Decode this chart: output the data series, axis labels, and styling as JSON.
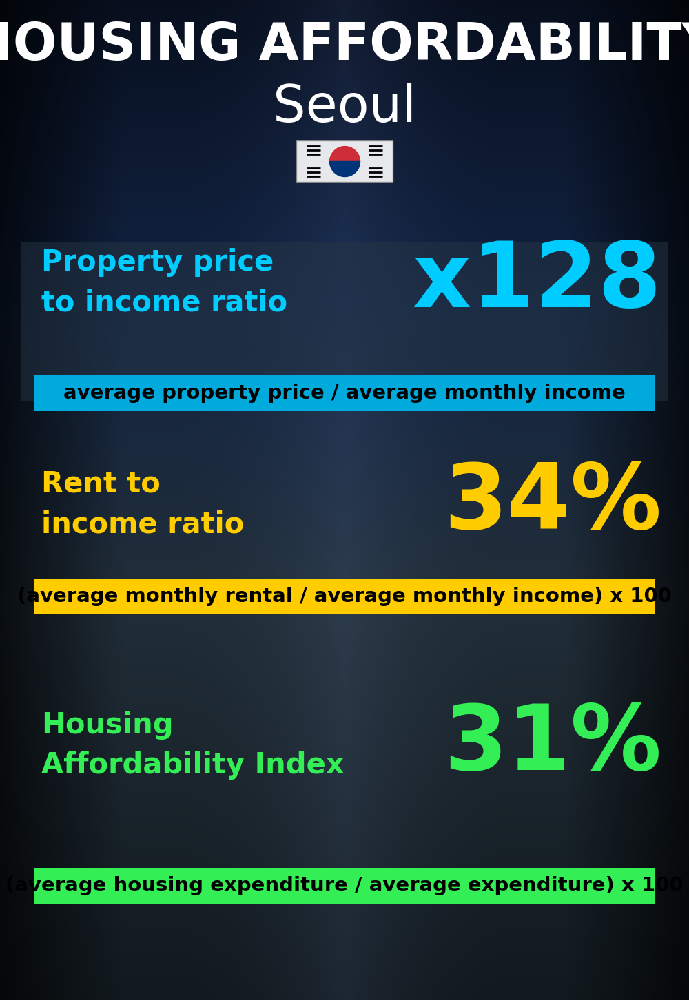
{
  "title_line1": "HOUSING AFFORDABILITY",
  "title_line2": "Seoul",
  "bg_color": "#08121e",
  "section1_label": "Property price\nto income ratio",
  "section1_value": "x128",
  "section1_label_color": "#00ccff",
  "section1_value_color": "#00ccff",
  "section1_formula": "average property price / average monthly income",
  "section1_formula_bg": "#00aadd",
  "section2_label": "Rent to\nincome ratio",
  "section2_value": "34%",
  "section2_label_color": "#ffcc00",
  "section2_value_color": "#ffcc00",
  "section2_formula": "(average monthly rental / average monthly income) x 100",
  "section2_formula_bg": "#ffcc00",
  "section3_label": "Housing\nAffordability Index",
  "section3_value": "31%",
  "section3_label_color": "#33ee55",
  "section3_value_color": "#33ee55",
  "section3_formula": "(average housing expenditure / average expenditure) x 100",
  "section3_formula_bg": "#33ee55",
  "title_color": "#ffffff",
  "panel1_color": "#2a3a50",
  "panel1_alpha": 0.45,
  "title_fontsize": 54,
  "city_fontsize": 54,
  "label_fontsize": 30,
  "value_fontsize": 95,
  "formula_fontsize": 21
}
